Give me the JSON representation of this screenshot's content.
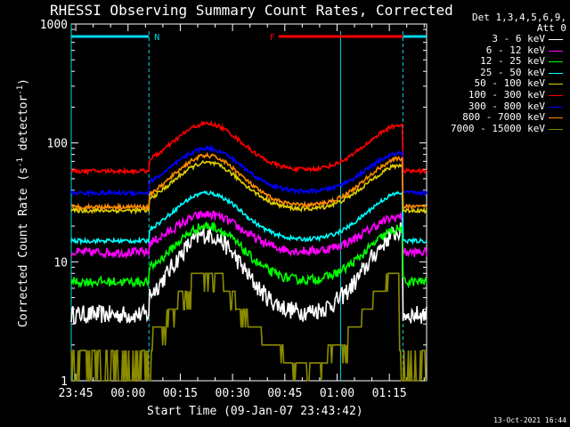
{
  "chart_data": {
    "type": "line",
    "title": "RHESSI Observing Summary Count Rates, Corrected",
    "xlabel": "Start Time (09-Jan-07 23:43:42)",
    "ylabel": {
      "pre": "Corrected Count Rate (s",
      "exp1": "-1",
      "mid": " detector",
      "exp2": "-1",
      "post": ")"
    },
    "x_ticks": [
      "23:45",
      "00:00",
      "00:15",
      "00:30",
      "00:45",
      "01:00",
      "01:15"
    ],
    "x_tick_minutes": [
      1.3,
      16.3,
      31.3,
      46.3,
      61.3,
      76.3,
      91.3
    ],
    "xlim_minutes": [
      0,
      102
    ],
    "y_scale": "log",
    "ylim": [
      1,
      1000
    ],
    "y_tick_labels": [
      "1",
      "10",
      "100",
      "1000"
    ],
    "detectors_label": "Det 1,3,4,5,6,9,",
    "attenuator_label": "Att 0",
    "timestamp": "13-Oct-2021 16:44",
    "flags": [
      {
        "label": "N",
        "color": "#00d8e8",
        "segments": [
          [
            0,
            22.3
          ],
          [
            95.2,
            102
          ]
        ]
      },
      {
        "label": "F",
        "color": "#ff0000",
        "segments": [
          [
            59.5,
            95.2
          ]
        ]
      }
    ],
    "night_boundaries_minutes": [
      22.3,
      95.2
    ],
    "series": [
      {
        "name": "3 - 6 keV",
        "color": "#ffffff",
        "profile": "low",
        "night_level": 3.6,
        "peak1": 17,
        "peak1_at": 39,
        "peak2": 18,
        "peak2_at": 95
      },
      {
        "name": "6 - 12 keV",
        "color": "#ff00ff",
        "profile": "mid",
        "night_level": 12,
        "peak1": 25,
        "peak1_at": 39,
        "peak2": 24,
        "peak2_at": 95
      },
      {
        "name": "12 - 25 keV",
        "color": "#00ff00",
        "profile": "mid",
        "night_level": 6.8,
        "peak1": 20,
        "peak1_at": 39,
        "peak2": 19,
        "peak2_at": 95
      },
      {
        "name": "25 - 50 keV",
        "color": "#00ffff",
        "profile": "smooth",
        "night_level": 15,
        "peak1": 38,
        "peak1_at": 39,
        "peak2": 38,
        "peak2_at": 95
      },
      {
        "name": "50 - 100 keV",
        "color": "#e0d000",
        "profile": "smooth",
        "night_level": 27,
        "peak1": 68,
        "peak1_at": 39,
        "peak2": 65,
        "peak2_at": 95
      },
      {
        "name": "100 - 300 keV",
        "color": "#ff0000",
        "profile": "smooth",
        "night_level": 58,
        "peak1": 145,
        "peak1_at": 39,
        "peak2": 142,
        "peak2_at": 95
      },
      {
        "name": "300 - 800 keV",
        "color": "#0000ff",
        "profile": "smooth",
        "night_level": 38,
        "peak1": 90,
        "peak1_at": 39,
        "peak2": 82,
        "peak2_at": 95
      },
      {
        "name": "800 - 7000 keV",
        "color": "#ff8c00",
        "profile": "smooth",
        "night_level": 29,
        "peak1": 78,
        "peak1_at": 39,
        "peak2": 74,
        "peak2_at": 95
      },
      {
        "name": "7000 - 15000 keV",
        "color": "#8b8b00",
        "profile": "step",
        "night_level": 1.6,
        "peak1": 8,
        "peak1_at": 39,
        "peak2": 8,
        "peak2_at": 95
      }
    ]
  }
}
